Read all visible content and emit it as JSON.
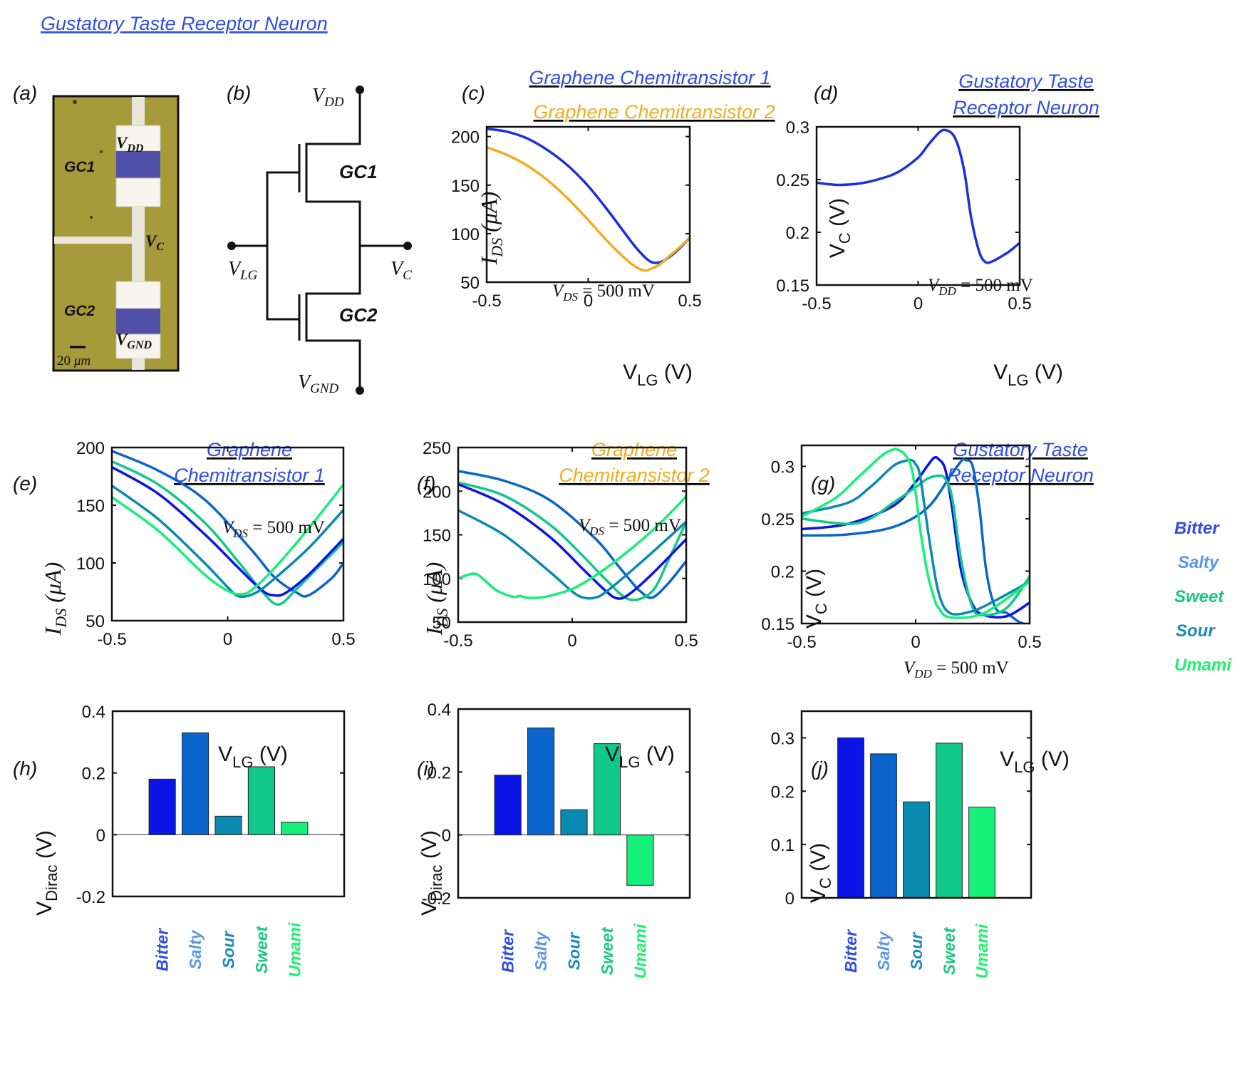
{
  "figure_title": "Gustatory Taste Receptor Neuron",
  "colors": {
    "gc1": "#1a2fe0",
    "gc2": "#f2ac1e",
    "neuron": "#1a2fe0",
    "bitter": "#0a14e6",
    "salty": "#0a66cc",
    "sour": "#0a8ab0",
    "sweet": "#10c88a",
    "umami": "#14f07a",
    "bitter_label": "#2f4de6",
    "salty_label": "#5a96e6",
    "sour_label": "#1a8ab8",
    "sweet_label": "#18c880",
    "umami_label": "#20f070",
    "chip_bg": "#a69a3a"
  },
  "panel_labels": [
    "(a)",
    "(b)",
    "(c)",
    "(d)",
    "(e)",
    "(f)",
    "(g)",
    "(h)",
    "(i)",
    "(j)"
  ],
  "panel_a": {
    "gc1": "GC1",
    "gc2": "GC2",
    "vdd_main": "V",
    "vdd_sub": "DD",
    "vc_main": "V",
    "vc_sub": "C",
    "vgnd_main": "V",
    "vgnd_sub": "GND",
    "scale_value": "20",
    "scale_unit": "μm"
  },
  "panel_b": {
    "vdd_main": "V",
    "vdd_sub": "DD",
    "vlg_main": "V",
    "vlg_sub": "LG",
    "vc_main": "V",
    "vc_sub": "C",
    "vgnd_main": "V",
    "vgnd_sub": "GND",
    "gc1": "GC1",
    "gc2": "GC2"
  },
  "titles": {
    "c1": "Graphene Chemitransistor 1",
    "c2": "Graphene Chemitransistor 2",
    "d1": "Gustatory Taste",
    "d2": "Receptor Neuron",
    "e1": "Graphene",
    "e2": "Chemitransistor 1",
    "f1": "Graphene",
    "f2": "Chemitransistor 2",
    "g1": "Gustatory Taste",
    "g2": "Receptor Neuron"
  },
  "axis_text": {
    "vlg_main": "V",
    "vlg_sub": "LG",
    "vlg_unit": " (V)",
    "ids_main": "I",
    "ids_sub": "DS",
    "ids_unit": " (μA)",
    "vc_main": "V",
    "vc_sub": "C",
    "vc_unit": " (V)",
    "vdirac_main": "V",
    "vdirac_sub": "Dirac",
    "vdirac_unit": " (V)",
    "vds_note_main": "V",
    "vds_note_sub": "DS",
    "vds_note_val": " = 500 mV",
    "vdd_note_main": "V",
    "vdd_note_sub": "DD",
    "vdd_note_val": " = 500 mV"
  },
  "legend_g": [
    "Bitter",
    "Salty",
    "Sweet",
    "Sour",
    "Umami"
  ],
  "bar_categories": [
    "Bitter",
    "Salty",
    "Sour",
    "Sweet",
    "Umami"
  ],
  "chart_data": [
    {
      "id": "c",
      "type": "line",
      "xlim": [
        -0.5,
        0.5
      ],
      "ylim": [
        50,
        210
      ],
      "xticks": [
        "-0.5",
        "0",
        "0.5"
      ],
      "yticks": [
        "50",
        "100",
        "150",
        "200"
      ],
      "series": [
        {
          "name": "Graphene Chemitransistor 1",
          "x": [
            -0.5,
            -0.4,
            -0.3,
            -0.2,
            -0.1,
            0,
            0.1,
            0.2,
            0.25,
            0.3,
            0.33,
            0.36,
            0.4,
            0.45,
            0.5
          ],
          "y": [
            208,
            205,
            198,
            186,
            170,
            149,
            123,
            95,
            82,
            72,
            70,
            71,
            76,
            85,
            96
          ]
        },
        {
          "name": "Graphene Chemitransistor 2",
          "x": [
            -0.5,
            -0.4,
            -0.3,
            -0.2,
            -0.1,
            0,
            0.1,
            0.2,
            0.25,
            0.28,
            0.3,
            0.35,
            0.4,
            0.45,
            0.5
          ],
          "y": [
            189,
            181,
            170,
            155,
            136,
            114,
            91,
            71,
            64,
            62,
            63,
            68,
            77,
            86,
            96
          ]
        }
      ]
    },
    {
      "id": "d",
      "type": "line",
      "xlim": [
        -0.5,
        0.5
      ],
      "ylim": [
        0.15,
        0.3
      ],
      "xticks": [
        "-0.5",
        "0",
        "0.5"
      ],
      "yticks": [
        "0.15",
        "0.2",
        "0.25",
        "0.3"
      ],
      "series": [
        {
          "name": "Gustatory Taste Receptor Neuron",
          "x": [
            -0.5,
            -0.4,
            -0.3,
            -0.2,
            -0.1,
            0,
            0.05,
            0.1,
            0.13,
            0.17,
            0.2,
            0.23,
            0.26,
            0.3,
            0.33,
            0.36,
            0.4,
            0.45,
            0.5
          ],
          "y": [
            0.247,
            0.245,
            0.246,
            0.25,
            0.257,
            0.271,
            0.283,
            0.294,
            0.297,
            0.293,
            0.28,
            0.255,
            0.215,
            0.182,
            0.172,
            0.172,
            0.176,
            0.182,
            0.19
          ]
        }
      ]
    },
    {
      "id": "e",
      "type": "line",
      "xlim": [
        -0.5,
        0.5
      ],
      "ylim": [
        50,
        200
      ],
      "xticks": [
        "-0.5",
        "0",
        "0.5"
      ],
      "yticks": [
        "50",
        "100",
        "150",
        "200"
      ],
      "series": [
        {
          "name": "Salty",
          "x": [
            -0.5,
            -0.3,
            -0.1,
            0.1,
            0.2,
            0.3,
            0.35,
            0.45,
            0.5
          ],
          "y": [
            197,
            180,
            155,
            112,
            88,
            74,
            72,
            87,
            100
          ]
        },
        {
          "name": "Sweet",
          "x": [
            -0.5,
            -0.3,
            -0.1,
            0.05,
            0.15,
            0.22,
            0.3,
            0.4,
            0.5
          ],
          "y": [
            188,
            168,
            135,
            100,
            75,
            64,
            78,
            98,
            118
          ]
        },
        {
          "name": "Bitter",
          "x": [
            -0.5,
            -0.3,
            -0.1,
            0.05,
            0.15,
            0.2,
            0.25,
            0.35,
            0.5
          ],
          "y": [
            183,
            160,
            125,
            95,
            76,
            72,
            74,
            90,
            121
          ]
        },
        {
          "name": "Sour",
          "x": [
            -0.5,
            -0.3,
            -0.1,
            0,
            0.05,
            0.12,
            0.2,
            0.35,
            0.5
          ],
          "y": [
            167,
            138,
            100,
            79,
            71,
            74,
            86,
            113,
            146
          ]
        },
        {
          "name": "Umami",
          "x": [
            -0.5,
            -0.3,
            -0.1,
            0,
            0.05,
            0.1,
            0.2,
            0.35,
            0.5
          ],
          "y": [
            157,
            128,
            90,
            76,
            73,
            76,
            95,
            130,
            168
          ]
        }
      ]
    },
    {
      "id": "f",
      "type": "line",
      "xlim": [
        -0.5,
        0.5
      ],
      "ylim": [
        50,
        250
      ],
      "xticks": [
        "-0.5",
        "0",
        "0.5"
      ],
      "yticks": [
        "50",
        "100",
        "150",
        "200",
        "250"
      ],
      "series": [
        {
          "name": "Salty",
          "x": [
            -0.5,
            -0.3,
            -0.1,
            0.1,
            0.2,
            0.27,
            0.3,
            0.35,
            0.42,
            0.5
          ],
          "y": [
            223,
            212,
            190,
            146,
            115,
            93,
            85,
            78,
            94,
            120
          ]
        },
        {
          "name": "Sweet",
          "x": [
            -0.5,
            -0.3,
            -0.1,
            0.05,
            0.15,
            0.25,
            0.35,
            0.42,
            0.5
          ],
          "y": [
            210,
            195,
            162,
            125,
            98,
            76,
            85,
            120,
            165
          ]
        },
        {
          "name": "Bitter",
          "x": [
            -0.5,
            -0.3,
            -0.1,
            0.05,
            0.15,
            0.2,
            0.25,
            0.35,
            0.5
          ],
          "y": [
            208,
            185,
            148,
            110,
            85,
            77,
            82,
            105,
            145
          ]
        },
        {
          "name": "Sour",
          "x": [
            -0.5,
            -0.3,
            -0.1,
            0,
            0.05,
            0.1,
            0.15,
            0.3,
            0.5
          ],
          "y": [
            178,
            150,
            108,
            85,
            78,
            78,
            85,
            118,
            165
          ]
        },
        {
          "name": "Umami",
          "x": [
            -0.5,
            -0.46,
            -0.42,
            -0.38,
            -0.33,
            -0.26,
            -0.23,
            -0.2,
            -0.15,
            -0.1,
            0,
            0.1,
            0.2,
            0.3,
            0.4,
            0.5
          ],
          "y": [
            100,
            104,
            105,
            97,
            86,
            79,
            80,
            78,
            78,
            80,
            88,
            103,
            122,
            143,
            167,
            194
          ]
        }
      ]
    },
    {
      "id": "g",
      "type": "line",
      "xlim": [
        -0.5,
        0.5
      ],
      "ylim": [
        0.15,
        0.32
      ],
      "xticks": [
        "-0.5",
        "0",
        "0.5"
      ],
      "yticks": [
        "0.15",
        "0.2",
        "0.25",
        "0.3"
      ],
      "series": [
        {
          "name": "Salty",
          "x": [
            -0.5,
            -0.3,
            -0.1,
            0.05,
            0.15,
            0.2,
            0.22,
            0.25,
            0.28,
            0.31,
            0.35,
            0.4,
            0.45,
            0.5
          ],
          "y": [
            0.234,
            0.235,
            0.242,
            0.26,
            0.29,
            0.305,
            0.306,
            0.3,
            0.26,
            0.2,
            0.165,
            0.16,
            0.152,
            0.148
          ]
        },
        {
          "name": "Bitter",
          "x": [
            -0.5,
            -0.3,
            -0.1,
            0,
            0.05,
            0.08,
            0.1,
            0.13,
            0.16,
            0.2,
            0.25,
            0.3,
            0.4,
            0.5
          ],
          "y": [
            0.24,
            0.245,
            0.262,
            0.285,
            0.3,
            0.308,
            0.307,
            0.297,
            0.26,
            0.2,
            0.168,
            0.158,
            0.157,
            0.17
          ]
        },
        {
          "name": "Sweet",
          "x": [
            -0.5,
            -0.3,
            -0.2,
            -0.1,
            0,
            0.05,
            0.1,
            0.13,
            0.16,
            0.2,
            0.25,
            0.3,
            0.4,
            0.5
          ],
          "y": [
            0.25,
            0.245,
            0.25,
            0.265,
            0.28,
            0.288,
            0.291,
            0.288,
            0.27,
            0.21,
            0.165,
            0.158,
            0.165,
            0.195
          ]
        },
        {
          "name": "Sour",
          "x": [
            -0.5,
            -0.3,
            -0.2,
            -0.1,
            -0.05,
            -0.02,
            0,
            0.02,
            0.06,
            0.1,
            0.15,
            0.25,
            0.35,
            0.5
          ],
          "y": [
            0.255,
            0.265,
            0.28,
            0.3,
            0.305,
            0.306,
            0.302,
            0.29,
            0.23,
            0.18,
            0.16,
            0.162,
            0.172,
            0.19
          ]
        },
        {
          "name": "Umami",
          "x": [
            -0.5,
            -0.35,
            -0.25,
            -0.15,
            -0.1,
            -0.08,
            -0.05,
            -0.02,
            0,
            0.02,
            0.05,
            0.08,
            0.1,
            0.15,
            0.3,
            0.5
          ],
          "y": [
            0.252,
            0.27,
            0.29,
            0.31,
            0.316,
            0.316,
            0.312,
            0.3,
            0.275,
            0.24,
            0.2,
            0.175,
            0.165,
            0.156,
            0.16,
            0.19
          ]
        }
      ]
    },
    {
      "id": "h",
      "type": "bar",
      "categories": [
        "Bitter",
        "Salty",
        "Sour",
        "Sweet",
        "Umami"
      ],
      "values": [
        0.18,
        0.33,
        0.06,
        0.22,
        0.04
      ],
      "ylim": [
        -0.2,
        0.4
      ],
      "yticks": [
        "-0.2",
        "0",
        "0.2",
        "0.4"
      ]
    },
    {
      "id": "i",
      "type": "bar",
      "categories": [
        "Bitter",
        "Salty",
        "Sour",
        "Sweet",
        "Umami"
      ],
      "values": [
        0.19,
        0.34,
        0.08,
        0.29,
        -0.16
      ],
      "ylim": [
        -0.2,
        0.4
      ],
      "yticks": [
        "-0.2",
        "0",
        "0.2",
        "0.4"
      ]
    },
    {
      "id": "j",
      "type": "bar",
      "categories": [
        "Bitter",
        "Salty",
        "Sour",
        "Sweet",
        "Umami"
      ],
      "values": [
        0.3,
        0.27,
        0.18,
        0.29,
        0.17
      ],
      "ylim": [
        0,
        0.35
      ],
      "yticks": [
        "0",
        "0.1",
        "0.2",
        "0.3"
      ]
    }
  ]
}
